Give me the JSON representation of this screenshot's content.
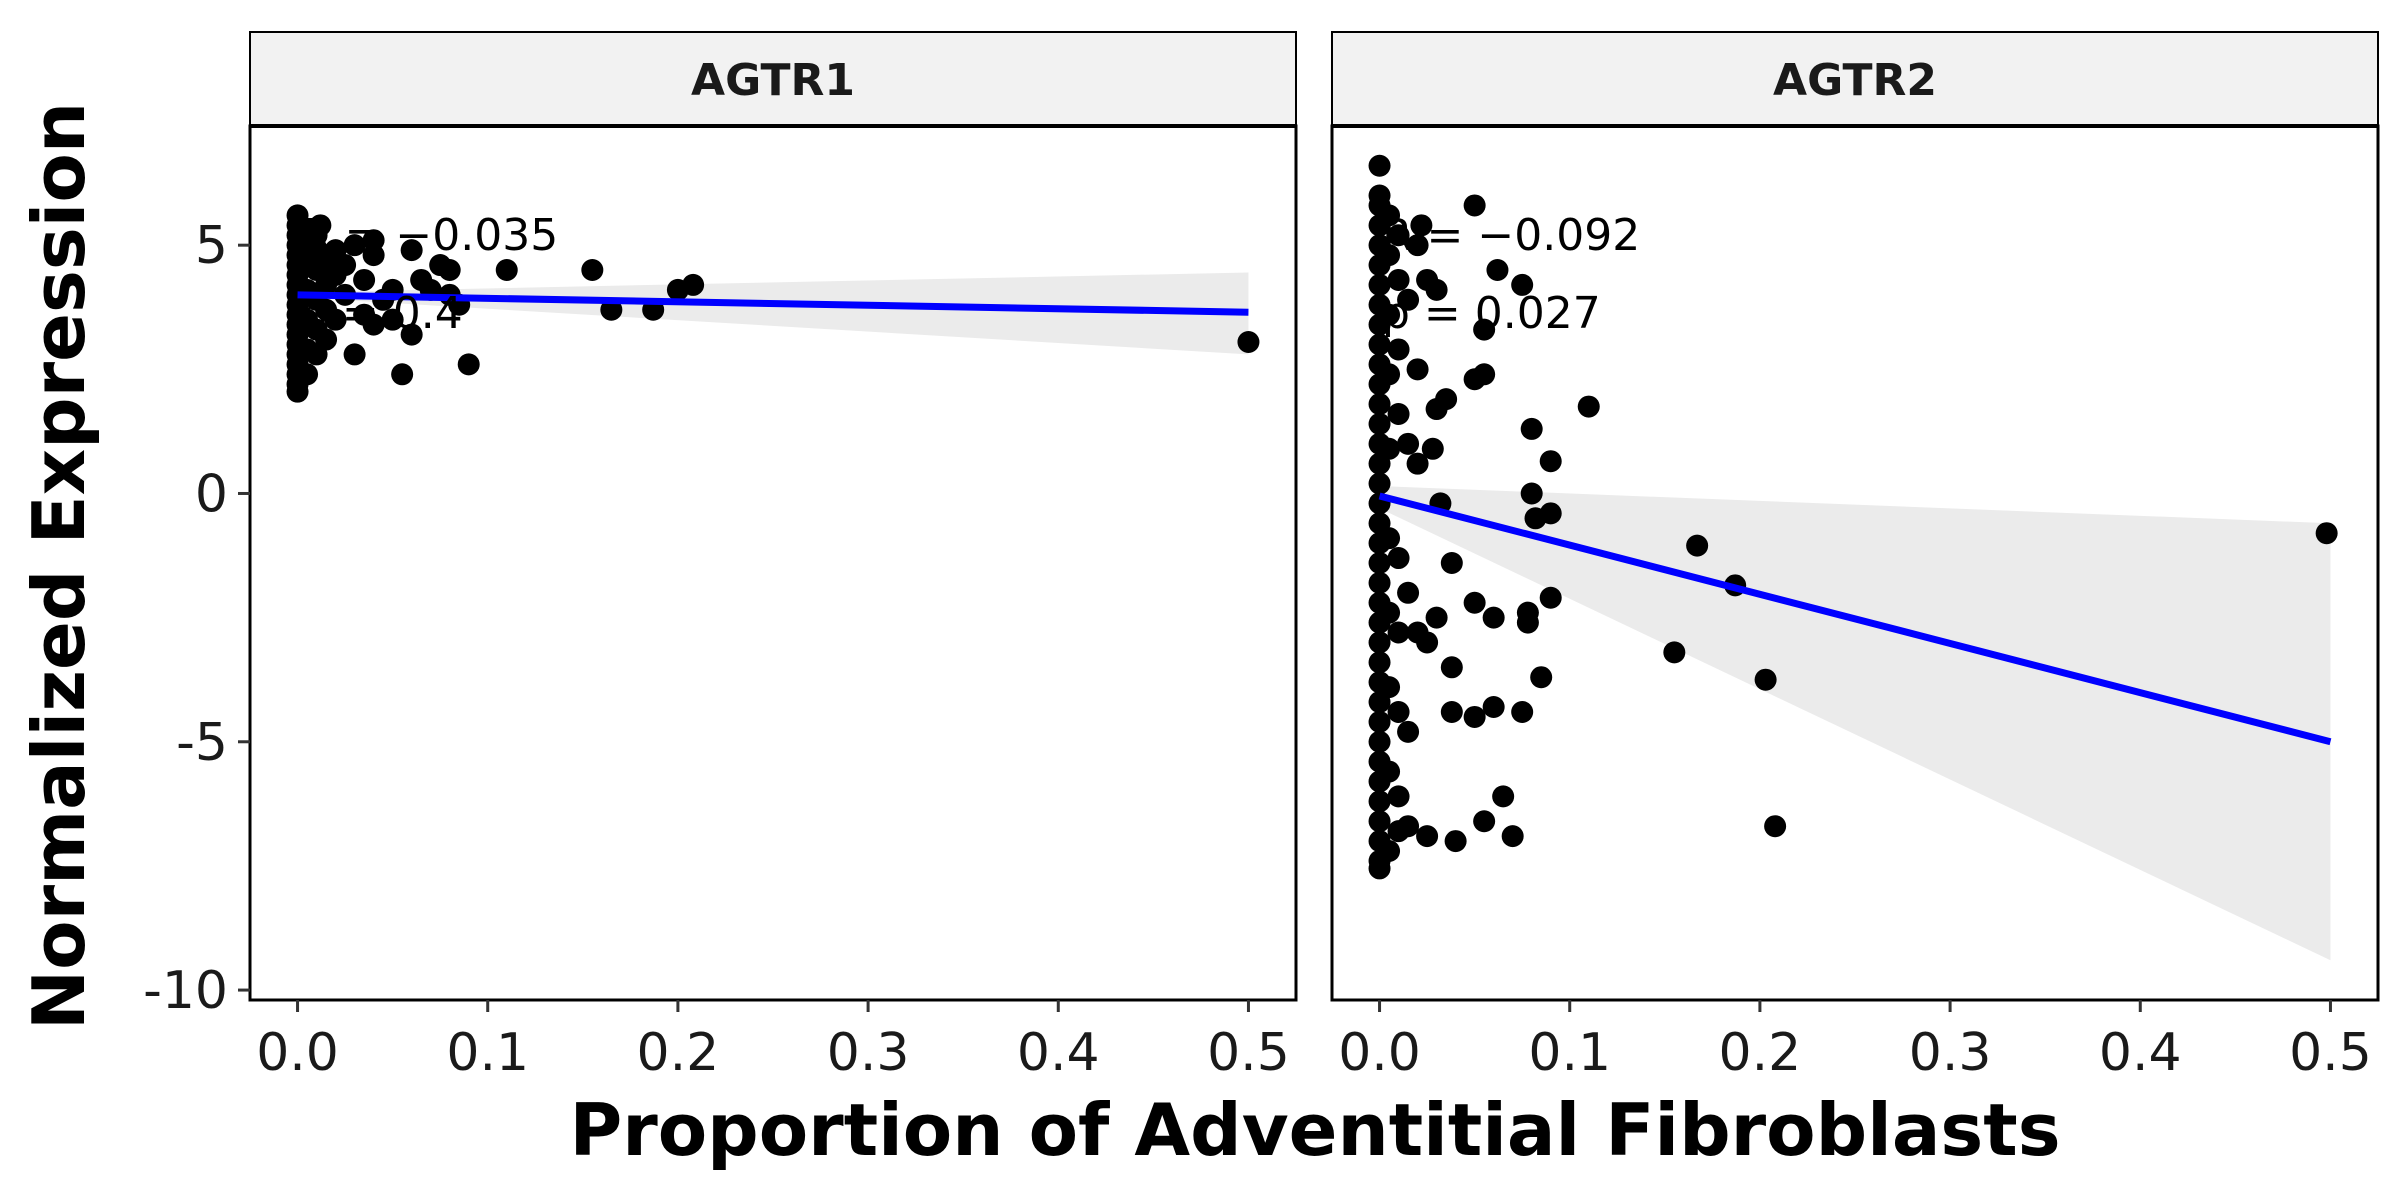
{
  "chart_data": {
    "type": "scatter",
    "xlabel": "Proportion of Adventitial Fibroblasts",
    "ylabel": "Normalized Expression",
    "xlim": [
      -0.025,
      0.525
    ],
    "ylim": [
      -10.2,
      7.4
    ],
    "x_ticks": [
      "0.0",
      "0.1",
      "0.2",
      "0.3",
      "0.4",
      "0.5"
    ],
    "y_ticks": [
      "5",
      "0",
      "-5",
      "-10"
    ],
    "grid": false,
    "colors": {
      "points": "#000000",
      "fit_line": "#0000ff",
      "confidence_band": "#ebebeb",
      "strip_background": "#f2f2f2"
    },
    "panels": [
      {
        "name": "AGTR1",
        "stats": [
          "R = −0.035",
          "p = 0.4"
        ],
        "fit": {
          "x": [
            0.0,
            0.5
          ],
          "y": [
            4.0,
            3.65
          ]
        },
        "band": {
          "x": [
            0.0,
            0.5
          ],
          "upper": [
            4.05,
            4.45
          ],
          "lower": [
            3.95,
            2.8
          ]
        },
        "points": [
          [
            0.0,
            5.6
          ],
          [
            0.0,
            5.4
          ],
          [
            0.0,
            5.2
          ],
          [
            0.0,
            5.0
          ],
          [
            0.0,
            4.8
          ],
          [
            0.0,
            4.6
          ],
          [
            0.0,
            4.4
          ],
          [
            0.0,
            4.2
          ],
          [
            0.0,
            4.0
          ],
          [
            0.0,
            3.8
          ],
          [
            0.0,
            3.6
          ],
          [
            0.0,
            3.4
          ],
          [
            0.0,
            3.2
          ],
          [
            0.0,
            3.0
          ],
          [
            0.0,
            2.8
          ],
          [
            0.0,
            2.6
          ],
          [
            0.0,
            2.4
          ],
          [
            0.0,
            2.2
          ],
          [
            0.0,
            2.05
          ],
          [
            0.005,
            5.3
          ],
          [
            0.005,
            4.7
          ],
          [
            0.005,
            4.1
          ],
          [
            0.005,
            3.5
          ],
          [
            0.005,
            2.9
          ],
          [
            0.005,
            2.4
          ],
          [
            0.01,
            5.2
          ],
          [
            0.01,
            4.9
          ],
          [
            0.01,
            4.5
          ],
          [
            0.01,
            3.9
          ],
          [
            0.01,
            3.3
          ],
          [
            0.01,
            2.8
          ],
          [
            0.012,
            5.4
          ],
          [
            0.015,
            4.7
          ],
          [
            0.015,
            4.2
          ],
          [
            0.015,
            3.7
          ],
          [
            0.015,
            3.1
          ],
          [
            0.02,
            4.9
          ],
          [
            0.02,
            4.4
          ],
          [
            0.02,
            3.5
          ],
          [
            0.025,
            4.6
          ],
          [
            0.025,
            4.0
          ],
          [
            0.03,
            5.0
          ],
          [
            0.03,
            2.8
          ],
          [
            0.035,
            4.3
          ],
          [
            0.035,
            3.6
          ],
          [
            0.04,
            5.1
          ],
          [
            0.04,
            4.8
          ],
          [
            0.04,
            3.4
          ],
          [
            0.045,
            3.9
          ],
          [
            0.05,
            4.1
          ],
          [
            0.05,
            3.5
          ],
          [
            0.055,
            2.4
          ],
          [
            0.06,
            4.9
          ],
          [
            0.06,
            3.2
          ],
          [
            0.065,
            4.3
          ],
          [
            0.07,
            4.1
          ],
          [
            0.075,
            4.6
          ],
          [
            0.08,
            4.5
          ],
          [
            0.08,
            4.0
          ],
          [
            0.085,
            3.8
          ],
          [
            0.09,
            2.6
          ],
          [
            0.11,
            4.5
          ],
          [
            0.155,
            4.5
          ],
          [
            0.165,
            3.7
          ],
          [
            0.187,
            3.7
          ],
          [
            0.2,
            4.1
          ],
          [
            0.208,
            4.2
          ],
          [
            0.5,
            3.05
          ]
        ]
      },
      {
        "name": "AGTR2",
        "stats": [
          "R = −0.092",
          "p = 0.027"
        ],
        "fit": {
          "x": [
            0.0,
            0.5
          ],
          "y": [
            -0.05,
            -5.0
          ]
        },
        "band": {
          "x": [
            0.0,
            0.5
          ],
          "upper": [
            0.15,
            -0.6
          ],
          "lower": [
            -0.3,
            -9.4
          ]
        },
        "points": [
          [
            0.0,
            6.6
          ],
          [
            0.0,
            6.0
          ],
          [
            0.0,
            5.8
          ],
          [
            0.0,
            5.4
          ],
          [
            0.0,
            5.0
          ],
          [
            0.0,
            4.6
          ],
          [
            0.0,
            4.2
          ],
          [
            0.0,
            3.8
          ],
          [
            0.0,
            3.4
          ],
          [
            0.0,
            3.0
          ],
          [
            0.0,
            2.6
          ],
          [
            0.0,
            2.2
          ],
          [
            0.0,
            1.8
          ],
          [
            0.0,
            1.4
          ],
          [
            0.0,
            1.0
          ],
          [
            0.0,
            0.6
          ],
          [
            0.0,
            0.2
          ],
          [
            0.0,
            -0.2
          ],
          [
            0.0,
            -0.6
          ],
          [
            0.0,
            -1.0
          ],
          [
            0.0,
            -1.4
          ],
          [
            0.0,
            -1.8
          ],
          [
            0.0,
            -2.2
          ],
          [
            0.0,
            -2.6
          ],
          [
            0.0,
            -3.0
          ],
          [
            0.0,
            -3.4
          ],
          [
            0.0,
            -3.8
          ],
          [
            0.0,
            -4.2
          ],
          [
            0.0,
            -4.6
          ],
          [
            0.0,
            -5.0
          ],
          [
            0.0,
            -5.4
          ],
          [
            0.0,
            -5.8
          ],
          [
            0.0,
            -6.2
          ],
          [
            0.0,
            -6.6
          ],
          [
            0.0,
            -7.0
          ],
          [
            0.0,
            -7.4
          ],
          [
            0.0,
            -7.55
          ],
          [
            0.005,
            5.6
          ],
          [
            0.005,
            4.8
          ],
          [
            0.005,
            3.6
          ],
          [
            0.005,
            2.4
          ],
          [
            0.005,
            0.9
          ],
          [
            0.005,
            -0.9
          ],
          [
            0.005,
            -2.4
          ],
          [
            0.005,
            -3.9
          ],
          [
            0.005,
            -5.6
          ],
          [
            0.005,
            -7.2
          ],
          [
            0.01,
            5.2
          ],
          [
            0.01,
            4.3
          ],
          [
            0.01,
            2.9
          ],
          [
            0.01,
            1.6
          ],
          [
            0.01,
            -1.3
          ],
          [
            0.01,
            -2.8
          ],
          [
            0.01,
            -4.4
          ],
          [
            0.01,
            -6.1
          ],
          [
            0.01,
            -6.8
          ],
          [
            0.015,
            3.9
          ],
          [
            0.015,
            1.0
          ],
          [
            0.015,
            -2.0
          ],
          [
            0.015,
            -4.8
          ],
          [
            0.015,
            -6.7
          ],
          [
            0.02,
            5.0
          ],
          [
            0.02,
            2.5
          ],
          [
            0.02,
            0.6
          ],
          [
            0.02,
            -2.8
          ],
          [
            0.022,
            5.4
          ],
          [
            0.025,
            4.3
          ],
          [
            0.025,
            -3.0
          ],
          [
            0.025,
            -6.9
          ],
          [
            0.028,
            0.9
          ],
          [
            0.03,
            4.1
          ],
          [
            0.03,
            1.7
          ],
          [
            0.03,
            -2.5
          ],
          [
            0.032,
            -0.2
          ],
          [
            0.035,
            1.9
          ],
          [
            0.038,
            -1.4
          ],
          [
            0.038,
            -3.5
          ],
          [
            0.038,
            -4.4
          ],
          [
            0.04,
            -7.0
          ],
          [
            0.05,
            5.8
          ],
          [
            0.05,
            2.3
          ],
          [
            0.05,
            -2.2
          ],
          [
            0.05,
            -4.5
          ],
          [
            0.055,
            2.4
          ],
          [
            0.055,
            3.3
          ],
          [
            0.055,
            -6.6
          ],
          [
            0.06,
            -2.5
          ],
          [
            0.06,
            -4.3
          ],
          [
            0.062,
            4.5
          ],
          [
            0.065,
            -6.1
          ],
          [
            0.07,
            -6.9
          ],
          [
            0.075,
            4.2
          ],
          [
            0.075,
            -4.4
          ],
          [
            0.078,
            -2.4
          ],
          [
            0.078,
            -2.6
          ],
          [
            0.08,
            1.3
          ],
          [
            0.08,
            0.0
          ],
          [
            0.082,
            -0.5
          ],
          [
            0.085,
            -3.7
          ],
          [
            0.09,
            0.65
          ],
          [
            0.09,
            -0.4
          ],
          [
            0.09,
            -2.1
          ],
          [
            0.11,
            1.75
          ],
          [
            0.155,
            -3.2
          ],
          [
            0.167,
            -1.05
          ],
          [
            0.187,
            -1.85
          ],
          [
            0.203,
            -3.75
          ],
          [
            0.208,
            -6.7
          ],
          [
            0.498,
            -0.8
          ]
        ]
      }
    ]
  }
}
